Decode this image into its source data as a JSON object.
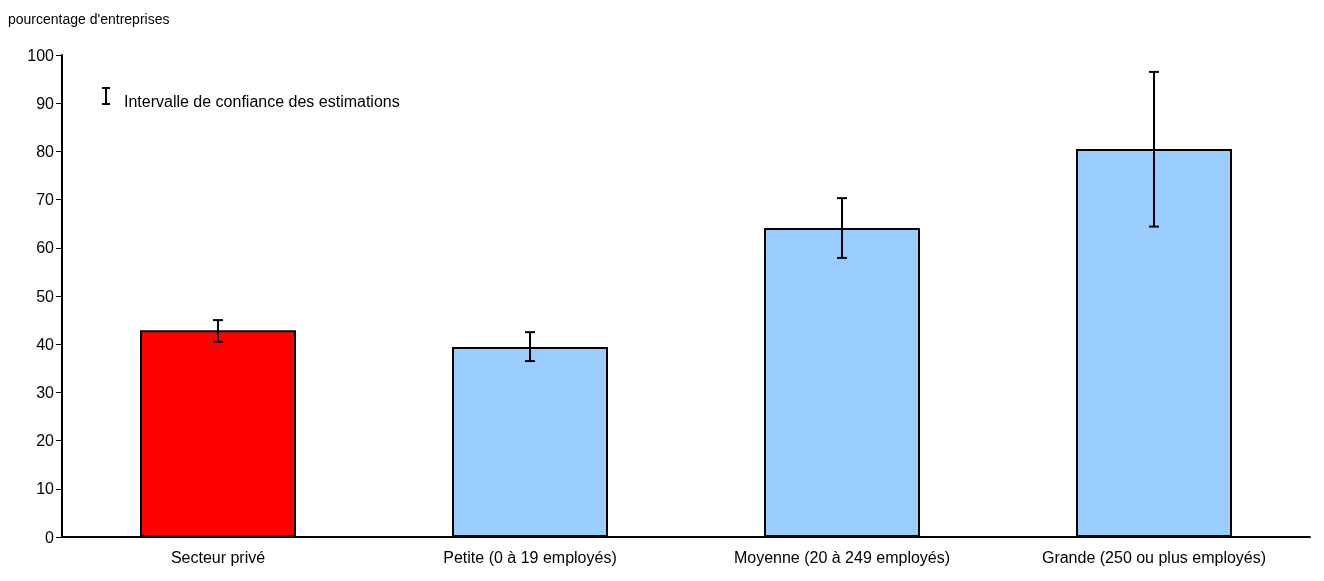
{
  "chart_data": {
    "type": "bar",
    "ylabel": "pourcentage d'entreprises",
    "categories": [
      "Secteur privé",
      "Petite (0 à 19 employés)",
      "Moyenne (20 à 249 employés)",
      "Grande (250 ou plus employés)"
    ],
    "values": [
      42.9,
      39.4,
      64.1,
      80.5
    ],
    "colors": [
      "#ff0000",
      "#99ccff",
      "#99ccff",
      "#99ccff"
    ],
    "errors": [
      [
        40.5,
        45.0
      ],
      [
        36.5,
        42.5
      ],
      [
        57.9,
        70.3
      ],
      [
        64.4,
        96.5
      ]
    ],
    "annotations": [
      "Intervalle de confiance des estimations"
    ],
    "ylim": [
      0,
      100
    ],
    "yticks": [
      0,
      10,
      20,
      30,
      40,
      50,
      60,
      70,
      80,
      90,
      100
    ],
    "grid": false
  }
}
